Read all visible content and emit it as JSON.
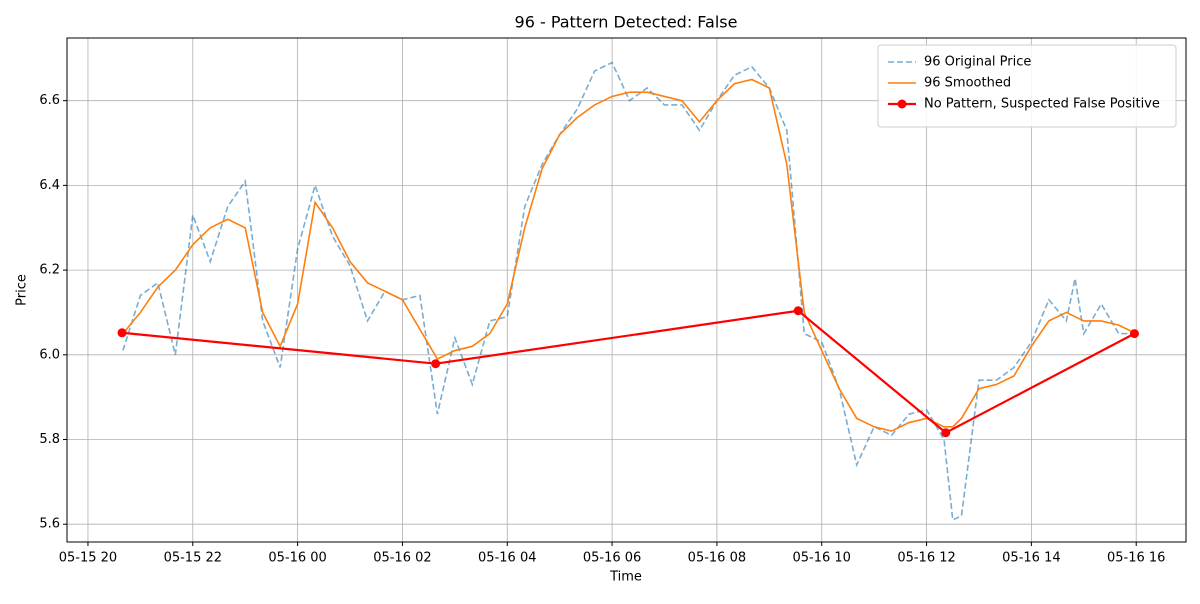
{
  "chart_data": {
    "type": "line",
    "title": "96 - Pattern Detected: False",
    "x_label": "Time",
    "y_label": "Price",
    "x": [
      "05-15 20:40",
      "05-15 21:00",
      "05-15 21:20",
      "05-15 21:40",
      "05-15 22:00",
      "05-15 22:20",
      "05-15 22:40",
      "05-15 23:00",
      "05-15 23:20",
      "05-15 23:40",
      "05-16 00:00",
      "05-16 00:20",
      "05-16 00:40",
      "05-16 01:00",
      "05-16 01:20",
      "05-16 01:40",
      "05-16 02:00",
      "05-16 02:20",
      "05-16 02:40",
      "05-16 03:00",
      "05-16 03:20",
      "05-16 03:40",
      "05-16 04:00",
      "05-16 04:20",
      "05-16 04:40",
      "05-16 05:00",
      "05-16 05:20",
      "05-16 05:40",
      "05-16 06:00",
      "05-16 06:20",
      "05-16 06:40",
      "05-16 07:00",
      "05-16 07:20",
      "05-16 07:40",
      "05-16 08:00",
      "05-16 08:20",
      "05-16 08:40",
      "05-16 09:00",
      "05-16 09:20",
      "05-16 09:40",
      "05-16 10:00",
      "05-16 10:20",
      "05-16 10:40",
      "05-16 11:00",
      "05-16 11:20",
      "05-16 11:40",
      "05-16 12:00",
      "05-16 12:20",
      "05-16 12:30",
      "05-16 12:40",
      "05-16 13:00",
      "05-16 13:20",
      "05-16 13:40",
      "05-16 14:00",
      "05-16 14:20",
      "05-16 14:40",
      "05-16 14:50",
      "05-16 15:00",
      "05-16 15:20",
      "05-16 15:40",
      "05-16 16:00"
    ],
    "series": [
      {
        "name": "96 Original Price",
        "color": "#1f77b4",
        "dashed": true,
        "values": [
          6.01,
          6.14,
          6.17,
          6.0,
          6.33,
          6.22,
          6.35,
          6.41,
          6.08,
          5.97,
          6.25,
          6.4,
          6.28,
          6.21,
          6.08,
          6.15,
          6.13,
          6.14,
          5.86,
          6.04,
          5.93,
          6.08,
          6.09,
          6.35,
          6.45,
          6.52,
          6.58,
          6.67,
          6.69,
          6.6,
          6.63,
          6.59,
          6.59,
          6.53,
          6.6,
          6.66,
          6.68,
          6.63,
          6.53,
          6.05,
          6.03,
          5.92,
          5.74,
          5.83,
          5.81,
          5.86,
          5.87,
          5.8,
          5.61,
          5.62,
          5.94,
          5.94,
          5.97,
          6.03,
          6.13,
          6.08,
          6.18,
          6.05,
          6.12,
          6.05,
          6.05
        ]
      },
      {
        "name": "96 Smoothed",
        "color": "#ff7f0e",
        "values": [
          6.05,
          6.1,
          6.16,
          6.2,
          6.26,
          6.3,
          6.32,
          6.3,
          6.1,
          6.02,
          6.12,
          6.36,
          6.3,
          6.22,
          6.17,
          6.15,
          6.13,
          6.06,
          5.99,
          6.01,
          6.02,
          6.05,
          6.12,
          6.3,
          6.44,
          6.52,
          6.56,
          6.59,
          6.61,
          6.62,
          6.62,
          6.61,
          6.6,
          6.55,
          6.6,
          6.64,
          6.65,
          6.63,
          6.45,
          6.1,
          6.01,
          5.92,
          5.85,
          5.83,
          5.82,
          5.84,
          5.85,
          5.83,
          5.83,
          5.85,
          5.92,
          5.93,
          5.95,
          6.02,
          6.08,
          6.1,
          6.09,
          6.08,
          6.08,
          6.07,
          6.05
        ]
      },
      {
        "name": "No Pattern, Suspected False Positive",
        "color": "#ff0000",
        "markers": true,
        "x": [
          "05-15 20:39",
          "05-16 02:38",
          "05-16 09:33",
          "05-16 12:22",
          "05-16 15:58"
        ],
        "values": [
          6.052,
          5.979,
          6.104,
          5.816,
          6.05
        ]
      }
    ],
    "xlim": [
      "05-15 19:36",
      "05-16 16:57"
    ],
    "xticks": [
      {
        "value": "05-15 20:00",
        "label": "05-15 20"
      },
      {
        "value": "05-15 22:00",
        "label": "05-15 22"
      },
      {
        "value": "05-16 00:00",
        "label": "05-16 00"
      },
      {
        "value": "05-16 02:00",
        "label": "05-16 02"
      },
      {
        "value": "05-16 04:00",
        "label": "05-16 04"
      },
      {
        "value": "05-16 06:00",
        "label": "05-16 06"
      },
      {
        "value": "05-16 08:00",
        "label": "05-16 08"
      },
      {
        "value": "05-16 10:00",
        "label": "05-16 10"
      },
      {
        "value": "05-16 12:00",
        "label": "05-16 12"
      },
      {
        "value": "05-16 14:00",
        "label": "05-16 14"
      },
      {
        "value": "05-16 16:00",
        "label": "05-16 16"
      }
    ],
    "ylim": [
      5.558,
      6.748
    ],
    "yticks": [
      {
        "value": 5.6,
        "label": "5.6"
      },
      {
        "value": 5.8,
        "label": "5.8"
      },
      {
        "value": 6.0,
        "label": "6.0"
      },
      {
        "value": 6.2,
        "label": "6.2"
      },
      {
        "value": 6.4,
        "label": "6.4"
      },
      {
        "value": 6.6,
        "label": "6.6"
      }
    ],
    "grid": true,
    "legend": "upper right"
  }
}
